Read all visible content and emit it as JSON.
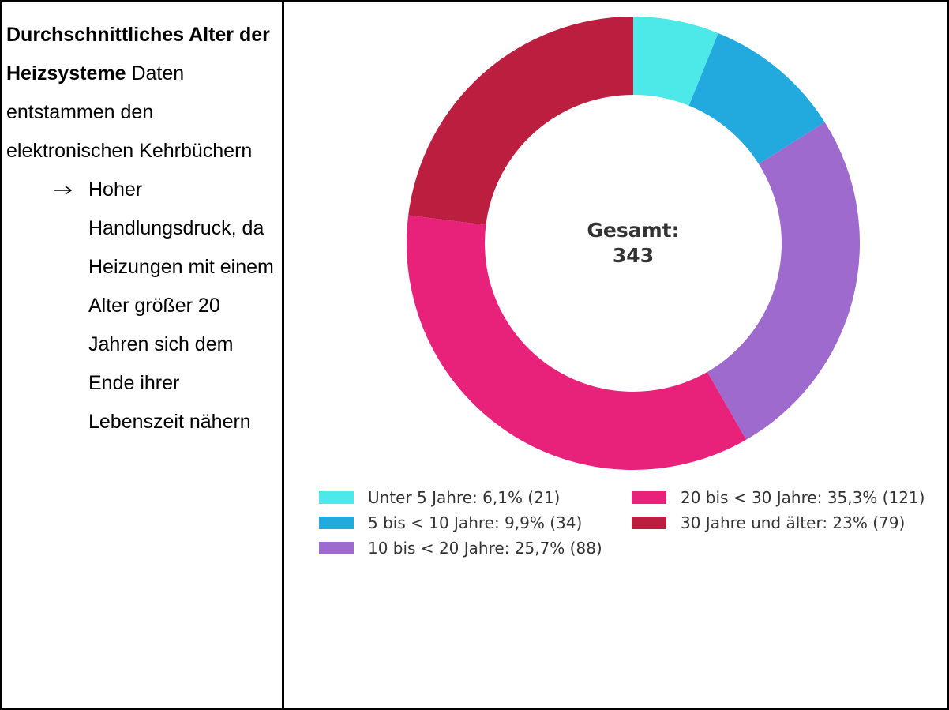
{
  "text": {
    "title": "Durchschnittliches Alter der Heizsysteme",
    "body": "Daten entstammen den elektronischen Kehrbüchern",
    "bullets": [
      "Hoher Handlungsdruck, da Heizungen mit einem Alter größer 20 Jahren sich dem Ende ihrer Lebenszeit nähern"
    ]
  },
  "chart_data": {
    "type": "donut",
    "categories": [
      "Unter 5 Jahre: 6,1% (21)",
      "5 bis < 10 Jahre: 9,9% (34)",
      "10 bis < 20 Jahre: 25,7% (88)",
      "20 bis < 30 Jahre: 35,3% (121)",
      "30 Jahre und älter: 23% (79)"
    ],
    "values": [
      21,
      34,
      88,
      121,
      79
    ],
    "colors": [
      "#4de8e8",
      "#22aade",
      "#9e6acd",
      "#e8227a",
      "#bb1e3e"
    ],
    "center_label": "Gesamt:",
    "total": 343
  }
}
